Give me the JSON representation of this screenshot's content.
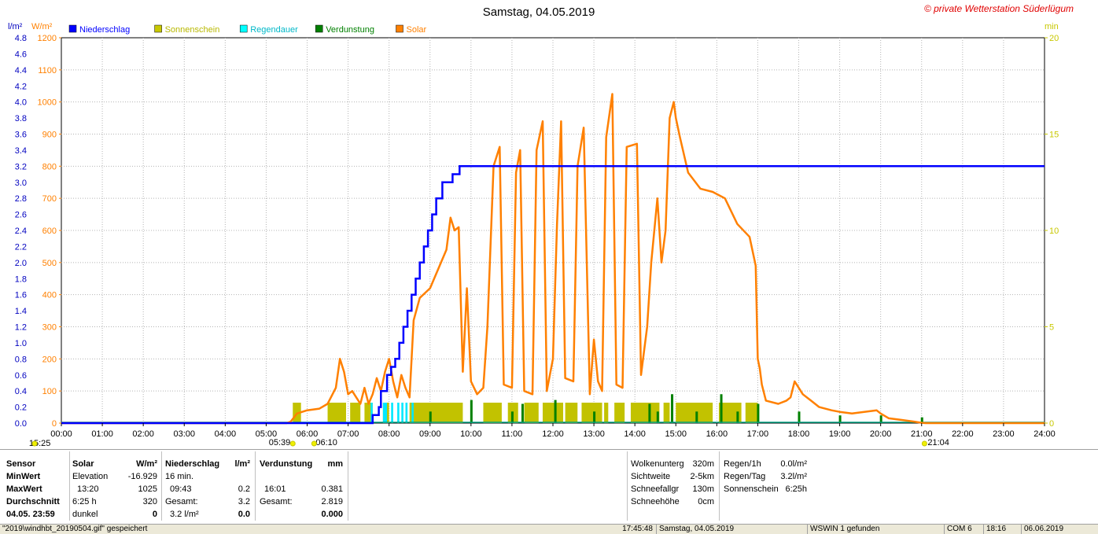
{
  "chart_data": {
    "type": "line",
    "title": "Samstag, 04.05.2019",
    "watermark": "© private Wetterstation Süderlügum",
    "left_axis_unit_rain": "l/m²",
    "left_axis_unit_solar": "W/m²",
    "right_axis_unit": "min",
    "rain_axis": {
      "min": 0,
      "max": 4.8,
      "ticks": [
        "0.0",
        "0.2",
        "0.4",
        "0.6",
        "0.8",
        "1.0",
        "1.2",
        "1.4",
        "1.6",
        "1.8",
        "2.0",
        "2.2",
        "2.4",
        "2.6",
        "2.8",
        "3.0",
        "3.2",
        "3.4",
        "3.6",
        "3.8",
        "4.0",
        "4.2",
        "4.4",
        "4.6",
        "4.8"
      ]
    },
    "solar_axis": {
      "min": 0,
      "max": 1200,
      "ticks": [
        "0",
        "100",
        "200",
        "300",
        "400",
        "500",
        "600",
        "700",
        "800",
        "900",
        "1000",
        "1100",
        "1200"
      ]
    },
    "minutes_axis": {
      "min": 0,
      "max": 20,
      "ticks": [
        "0",
        "5",
        "10",
        "15",
        "20"
      ]
    },
    "x_axis": {
      "min": 0,
      "max": 24,
      "ticks": [
        "00:00",
        "01:00",
        "02:00",
        "03:00",
        "04:00",
        "05:00",
        "06:00",
        "07:00",
        "08:00",
        "09:00",
        "10:00",
        "11:00",
        "12:00",
        "13:00",
        "14:00",
        "15:00",
        "16:00",
        "17:00",
        "18:00",
        "19:00",
        "20:00",
        "21:00",
        "22:00",
        "23:00",
        "24:00"
      ]
    },
    "sun_markers": [
      {
        "label": "15:25",
        "hour": -0.3
      },
      {
        "label": "05:39",
        "hour": 5.65
      },
      {
        "label": "06:10",
        "hour": 6.17
      },
      {
        "label": "21:04",
        "hour": 21.07
      }
    ],
    "legend": [
      {
        "name": "Niederschlag",
        "color": "#0000ff"
      },
      {
        "name": "Sonnenschein",
        "color": "#c8c800"
      },
      {
        "name": "Regendauer",
        "color": "#00ffff"
      },
      {
        "name": "Verdunstung",
        "color": "#008000"
      },
      {
        "name": "Solar",
        "color": "#ff8000"
      }
    ],
    "colors": {
      "rain": "#0000ff",
      "sunshine": "#c2c200",
      "rain_duration": "#00e8ff",
      "evap": "#008000",
      "solar": "#ff8000",
      "evap_line": "#00a080"
    },
    "rain_cumulative": [
      [
        0,
        0
      ],
      [
        7.55,
        0
      ],
      [
        7.6,
        0.1
      ],
      [
        7.75,
        0.2
      ],
      [
        7.8,
        0.4
      ],
      [
        7.95,
        0.6
      ],
      [
        8.05,
        0.7
      ],
      [
        8.15,
        0.8
      ],
      [
        8.25,
        1.0
      ],
      [
        8.35,
        1.2
      ],
      [
        8.45,
        1.4
      ],
      [
        8.55,
        1.6
      ],
      [
        8.65,
        1.8
      ],
      [
        8.75,
        2.0
      ],
      [
        8.85,
        2.2
      ],
      [
        8.95,
        2.4
      ],
      [
        9.05,
        2.6
      ],
      [
        9.15,
        2.8
      ],
      [
        9.3,
        3.0
      ],
      [
        9.55,
        3.1
      ],
      [
        9.72,
        3.2
      ],
      [
        24,
        3.2
      ]
    ],
    "solar": [
      [
        0,
        0
      ],
      [
        5.5,
        0
      ],
      [
        5.6,
        5
      ],
      [
        5.75,
        30
      ],
      [
        6.0,
        40
      ],
      [
        6.3,
        45
      ],
      [
        6.5,
        60
      ],
      [
        6.7,
        110
      ],
      [
        6.8,
        200
      ],
      [
        6.9,
        160
      ],
      [
        7.0,
        90
      ],
      [
        7.1,
        100
      ],
      [
        7.3,
        60
      ],
      [
        7.4,
        110
      ],
      [
        7.5,
        60
      ],
      [
        7.6,
        90
      ],
      [
        7.7,
        140
      ],
      [
        7.8,
        100
      ],
      [
        7.9,
        160
      ],
      [
        8.0,
        200
      ],
      [
        8.1,
        130
      ],
      [
        8.2,
        80
      ],
      [
        8.3,
        150
      ],
      [
        8.4,
        110
      ],
      [
        8.5,
        80
      ],
      [
        8.6,
        320
      ],
      [
        8.75,
        390
      ],
      [
        9.0,
        420
      ],
      [
        9.2,
        480
      ],
      [
        9.4,
        540
      ],
      [
        9.5,
        640
      ],
      [
        9.6,
        600
      ],
      [
        9.7,
        610
      ],
      [
        9.8,
        160
      ],
      [
        9.9,
        420
      ],
      [
        10.0,
        130
      ],
      [
        10.15,
        90
      ],
      [
        10.3,
        110
      ],
      [
        10.4,
        300
      ],
      [
        10.55,
        800
      ],
      [
        10.7,
        860
      ],
      [
        10.8,
        120
      ],
      [
        11.0,
        110
      ],
      [
        11.1,
        780
      ],
      [
        11.2,
        850
      ],
      [
        11.3,
        100
      ],
      [
        11.5,
        90
      ],
      [
        11.6,
        850
      ],
      [
        11.75,
        940
      ],
      [
        11.85,
        100
      ],
      [
        12.0,
        200
      ],
      [
        12.1,
        620
      ],
      [
        12.2,
        940
      ],
      [
        12.3,
        140
      ],
      [
        12.5,
        130
      ],
      [
        12.6,
        800
      ],
      [
        12.75,
        920
      ],
      [
        12.9,
        90
      ],
      [
        13.0,
        260
      ],
      [
        13.1,
        130
      ],
      [
        13.2,
        100
      ],
      [
        13.3,
        890
      ],
      [
        13.45,
        1025
      ],
      [
        13.55,
        120
      ],
      [
        13.7,
        110
      ],
      [
        13.8,
        860
      ],
      [
        14.05,
        870
      ],
      [
        14.15,
        150
      ],
      [
        14.3,
        300
      ],
      [
        14.4,
        500
      ],
      [
        14.55,
        700
      ],
      [
        14.65,
        500
      ],
      [
        14.75,
        600
      ],
      [
        14.85,
        950
      ],
      [
        14.95,
        1000
      ],
      [
        15.0,
        950
      ],
      [
        15.1,
        890
      ],
      [
        15.3,
        780
      ],
      [
        15.6,
        730
      ],
      [
        15.9,
        720
      ],
      [
        16.2,
        700
      ],
      [
        16.5,
        620
      ],
      [
        16.8,
        580
      ],
      [
        16.95,
        490
      ],
      [
        17.0,
        200
      ],
      [
        17.05,
        170
      ],
      [
        17.1,
        120
      ],
      [
        17.2,
        70
      ],
      [
        17.5,
        60
      ],
      [
        17.7,
        70
      ],
      [
        17.8,
        80
      ],
      [
        17.9,
        130
      ],
      [
        18.0,
        110
      ],
      [
        18.1,
        90
      ],
      [
        18.3,
        70
      ],
      [
        18.5,
        50
      ],
      [
        18.8,
        40
      ],
      [
        19.0,
        35
      ],
      [
        19.3,
        30
      ],
      [
        19.6,
        35
      ],
      [
        19.9,
        40
      ],
      [
        20.0,
        30
      ],
      [
        20.2,
        15
      ],
      [
        20.5,
        10
      ],
      [
        20.8,
        5
      ],
      [
        21.0,
        1
      ],
      [
        21.1,
        0
      ],
      [
        24,
        0
      ]
    ],
    "sunshine_blocks": [
      [
        5.65,
        5.85
      ],
      [
        6.5,
        6.95
      ],
      [
        7.05,
        7.3
      ],
      [
        7.4,
        7.6
      ],
      [
        7.85,
        8.0
      ],
      [
        8.5,
        9.8
      ],
      [
        10.3,
        10.75
      ],
      [
        10.9,
        11.15
      ],
      [
        11.3,
        11.65
      ],
      [
        11.75,
        12.25
      ],
      [
        12.3,
        12.6
      ],
      [
        12.7,
        13.2
      ],
      [
        13.25,
        13.35
      ],
      [
        13.5,
        13.75
      ],
      [
        13.9,
        14.6
      ],
      [
        14.7,
        14.85
      ],
      [
        15.0,
        15.9
      ],
      [
        16.05,
        16.6
      ],
      [
        16.7,
        17.0
      ]
    ],
    "rain_duration_blocks": [
      [
        7.55,
        7.6
      ],
      [
        7.85,
        7.95
      ],
      [
        8.05,
        8.1
      ],
      [
        8.2,
        8.25
      ],
      [
        8.3,
        8.35
      ],
      [
        8.4,
        8.45
      ],
      [
        8.55,
        8.6
      ]
    ],
    "evap_spikes": [
      [
        9.0,
        0.6
      ],
      [
        10.0,
        1.2
      ],
      [
        11.0,
        0.6
      ],
      [
        11.25,
        1.0
      ],
      [
        12.05,
        1.2
      ],
      [
        13.0,
        0.6
      ],
      [
        14.35,
        1.0
      ],
      [
        14.55,
        0.6
      ],
      [
        14.9,
        1.5
      ],
      [
        15.5,
        0.6
      ],
      [
        16.1,
        1.5
      ],
      [
        16.5,
        0.6
      ],
      [
        17.0,
        1.0
      ],
      [
        18.0,
        0.6
      ],
      [
        19.0,
        0.4
      ],
      [
        20.0,
        0.4
      ],
      [
        21.0,
        0.3
      ]
    ]
  },
  "panel": {
    "labels": {
      "sensor": "Sensor",
      "min": "MinWert",
      "max": "MaxWert",
      "avg": "Durchschnitt",
      "date": "04.05.  23:59"
    },
    "solar": {
      "title": "Solar",
      "unit": "W/m²",
      "min_label": "Elevation",
      "min_val": "-16.929",
      "max_time": "13:20",
      "max_val": "1025",
      "avg_label": "6:25 h",
      "avg_val": "320",
      "dark_label": "dunkel",
      "dark_val": "0"
    },
    "rain": {
      "title": "Niederschlag",
      "unit": "l/m²",
      "min_label": "16 min.",
      "max_time": "09:43",
      "max_val": "0.2",
      "total_label": "Gesamt:",
      "total_val": "3.2",
      "today_label": "3.2 l/m²",
      "today_val": "0.0"
    },
    "evap": {
      "title": "Verdunstung",
      "unit": "mm",
      "max_time": "16:01",
      "max_val": "0.381",
      "total_label": "Gesamt:",
      "total_val": "2.819",
      "today_val": "0.000"
    },
    "weather": [
      {
        "label": "Wolkenunterg",
        "value": "320m"
      },
      {
        "label": "Sichtweite",
        "value": "2-5km"
      },
      {
        "label": "Schneefallgr",
        "value": "130m"
      },
      {
        "label": "Schneehöhe",
        "value": "0cm"
      }
    ],
    "rainstats": [
      {
        "label": "Regen/1h",
        "value": "0.0l/m²"
      },
      {
        "label": "Regen/Tag",
        "value": "3.2l/m²"
      },
      {
        "label": "Sonnenschein",
        "value": "6:25h"
      }
    ]
  },
  "statusbar": {
    "file": "\"2019\\windhbt_20190504.gif\"  gespeichert",
    "time": "17:45:48",
    "date": "Samstag, 04.05.2019",
    "wswin": "WSWIN 1 gefunden",
    "com": "COM 6",
    "clock": "18:16",
    "today": "06.06.2019"
  }
}
